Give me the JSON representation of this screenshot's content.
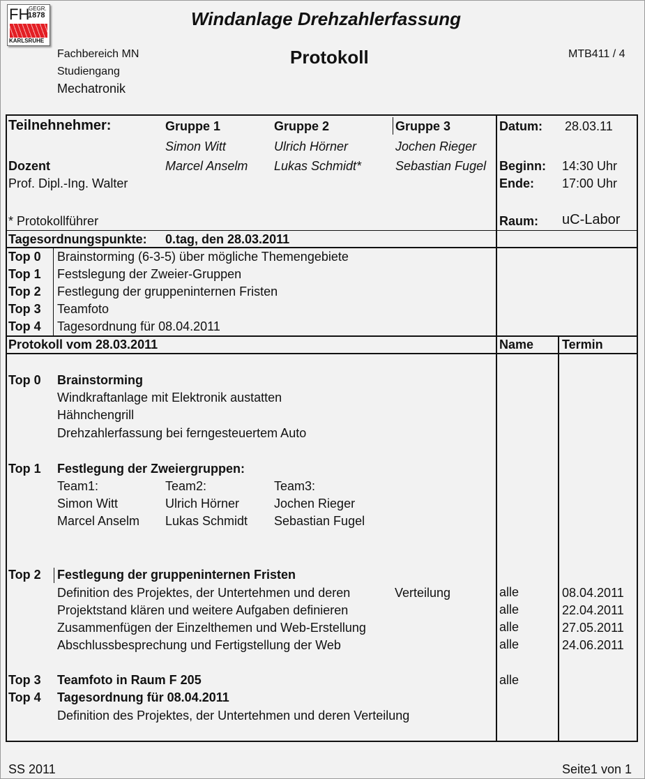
{
  "logo": {
    "text_fh": "FH",
    "text_gegr": "GEGR.",
    "text_year": "1878",
    "text_city": "KARLSRUHE",
    "colors": {
      "red": "#e31e24"
    }
  },
  "header": {
    "title": "Windanlage Drehzahlerfassung",
    "subtitle": "Protokoll",
    "doc_id": "MTB411 / 4",
    "dept": "Fachbereich MN",
    "program_label": "Studiengang",
    "program": "Mechatronik"
  },
  "participants": {
    "label": "Teilnehnehmer:",
    "groups": [
      {
        "name": "Gruppe 1",
        "members": [
          "Simon Witt",
          "Marcel  Anselm"
        ]
      },
      {
        "name": "Gruppe 2",
        "members": [
          "Ulrich Hörner",
          "Lukas Schmidt*"
        ]
      },
      {
        "name": "Gruppe 3",
        "members": [
          "Jochen Rieger",
          "Sebastian Fugel"
        ]
      }
    ],
    "lecturer_label": "Dozent",
    "lecturer": "Prof. Dipl.-Ing. Walter",
    "note": "* Protokollführer"
  },
  "meta": {
    "date_label": "Datum:",
    "date": "28.03.11",
    "start_label": "Beginn:",
    "start": "14:30 Uhr",
    "end_label": "Ende:",
    "end": "17:00 Uhr",
    "room_label": "Raum:",
    "room": "uC-Labor"
  },
  "agenda": {
    "label": "Tagesordnungspunkte:",
    "day": "0.tag, den 28.03.2011",
    "items": [
      {
        "top": "Top 0",
        "text": "Brainstorming (6-3-5) über mögliche Themengebiete"
      },
      {
        "top": "Top 1",
        "text": "Festslegung der Zweier-Gruppen"
      },
      {
        "top": "Top 2",
        "text": "Festlegung der gruppeninternen Fristen"
      },
      {
        "top": "Top 3",
        "text": "Teamfoto"
      },
      {
        "top": "Top 4",
        "text": "Tagesordnung für 08.04.2011"
      }
    ]
  },
  "protocol": {
    "title": "Protokoll vom 28.03.2011",
    "col_name": "Name",
    "col_termin": "Termin",
    "top0": {
      "top": "Top 0",
      "title": "Brainstorming",
      "lines": [
        "Windkraftanlage mit Elektronik austatten",
        "Hähnchengrill",
        "Drehzahlerfassung bei ferngesteuertem Auto"
      ]
    },
    "top1": {
      "top": "Top 1",
      "title": "Festlegung der Zweiergruppen:",
      "teams": [
        {
          "name": "Team1:",
          "members": [
            "Simon Witt",
            "Marcel Anselm"
          ]
        },
        {
          "name": "Team2:",
          "members": [
            "Ulrich Hörner",
            "Lukas Schmidt"
          ]
        },
        {
          "name": "Team3:",
          "members": [
            "Jochen Rieger",
            "Sebastian Fugel"
          ]
        }
      ]
    },
    "top2": {
      "top": "Top 2",
      "title": "Festlegung der gruppeninternen Fristen",
      "rows": [
        {
          "text": "Definition des Projektes, der Untertehmen und deren",
          "extra": "Verteilung",
          "name": "alle",
          "termin": "08.04.2011"
        },
        {
          "text": "Projektstand klären und weitere Aufgaben definieren",
          "name": "alle",
          "termin": "22.04.2011"
        },
        {
          "text": "Zusammenfügen der Einzelthemen und Web-Erstellung",
          "name": "alle",
          "termin": "27.05.2011"
        },
        {
          "text": "Abschlussbesprechung und Fertigstellung der Web",
          "name": "alle",
          "termin": "24.06.2011"
        }
      ]
    },
    "top3": {
      "top": "Top 3",
      "title": "Teamfoto in Raum F 205",
      "name": "alle"
    },
    "top4": {
      "top": "Top 4",
      "title": "Tagesordnung für 08.04.2011",
      "line": "Definition des Projektes, der Untertehmen und deren Verteilung"
    }
  },
  "footer": {
    "semester": "SS 2011",
    "page": "Seite1 von 1"
  }
}
